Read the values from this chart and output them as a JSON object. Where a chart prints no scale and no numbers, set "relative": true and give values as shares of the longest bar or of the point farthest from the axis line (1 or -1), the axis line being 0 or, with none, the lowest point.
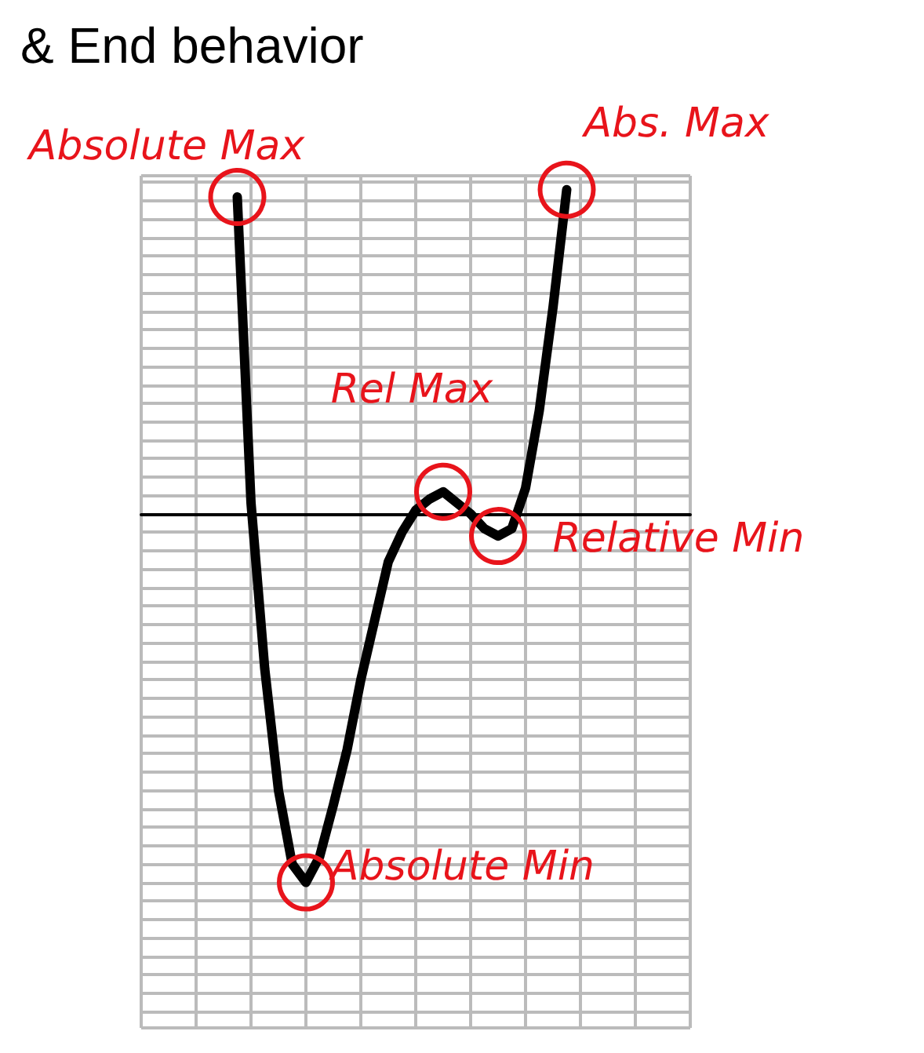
{
  "chart_data": {
    "type": "line",
    "title": "& End behavior",
    "relative": true,
    "categories": [
      null,
      null,
      null,
      null,
      null,
      null,
      null,
      null,
      null,
      null,
      null,
      null,
      null,
      null,
      null,
      null,
      null,
      null,
      null,
      null,
      null,
      null,
      null,
      null,
      null
    ],
    "series": [
      {
        "color": "#000000",
        "values": [
          0.86,
          0.03,
          -0.42,
          -0.75,
          -0.95,
          -1,
          -0.93,
          -0.79,
          -0.64,
          -0.45,
          -0.29,
          -0.13,
          -0.05,
          0.01,
          0.04,
          0.06,
          0.03,
          0,
          -0.04,
          -0.06,
          -0.04,
          0.07,
          0.28,
          0.56,
          0.88
        ]
      }
    ],
    "grid": true,
    "marker": "none",
    "line_style": "solid",
    "annotations": [
      "Absolute Max",
      "Abs. Max",
      "Rel Max",
      "Relative Min",
      "Absolute Min"
    ]
  }
}
